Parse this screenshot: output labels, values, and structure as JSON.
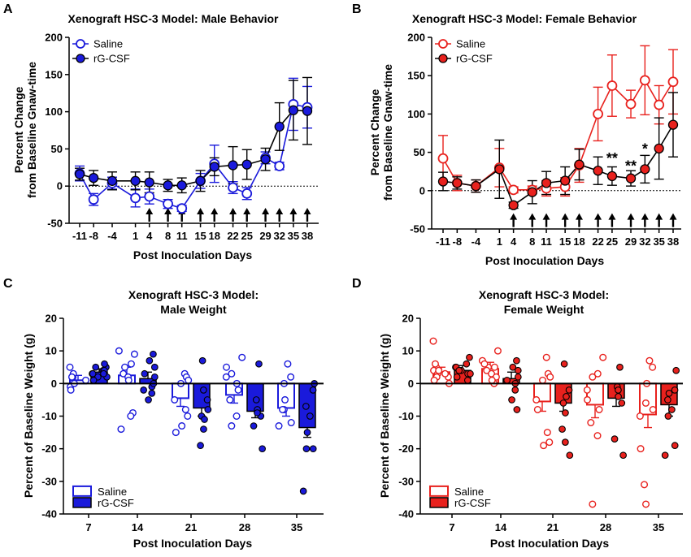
{
  "chart_data": [
    {
      "panel": "A",
      "type": "line",
      "title": "Xenograft HSC-3 Model: Male Behavior",
      "xlabel": "Post Inoculation Days",
      "ylabel": "Percent Change from Baseline Gnaw-time",
      "ylim": [
        -50,
        200
      ],
      "yticks": [
        -50,
        0,
        50,
        100,
        150,
        200
      ],
      "categories": [
        "-11",
        "-8",
        "-4",
        "1",
        "4",
        "8",
        "11",
        "15",
        "18",
        "22",
        "25",
        "29",
        "32",
        "35",
        "38"
      ],
      "x": [
        -11,
        -8,
        -4,
        1,
        4,
        8,
        11,
        15,
        18,
        22,
        25,
        29,
        32,
        35,
        38
      ],
      "arrow_days": [
        4,
        8,
        11,
        15,
        18,
        22,
        25,
        29,
        32,
        35,
        38
      ],
      "baseline": 0,
      "color": "#1a1adb",
      "legend": [
        "Saline",
        "rG-CSF"
      ],
      "legend_position": "top-left",
      "series": [
        {
          "name": "Saline",
          "style": "open",
          "values": [
            17,
            -18,
            4,
            -16,
            -14,
            -24,
            -30,
            7,
            30,
            -2,
            -10,
            38,
            27,
            110,
            106
          ],
          "errors": [
            10,
            8,
            8,
            12,
            10,
            6,
            4,
            10,
            25,
            8,
            8,
            8,
            5,
            35,
            28
          ]
        },
        {
          "name": "rG-CSF",
          "style": "filled",
          "values": [
            16,
            11,
            7,
            7,
            5,
            1,
            1,
            7,
            26,
            28,
            29,
            36,
            80,
            102,
            101
          ],
          "errors": [
            8,
            10,
            12,
            12,
            14,
            8,
            10,
            14,
            12,
            25,
            20,
            15,
            32,
            40,
            45
          ]
        }
      ]
    },
    {
      "panel": "B",
      "type": "line",
      "title": "Xenograft HSC-3 Model: Female Behavior",
      "xlabel": "Post Inoculation Days",
      "ylabel": "Percent Change from Baseline Gnaw-time",
      "ylim": [
        -50,
        200
      ],
      "yticks": [
        -50,
        0,
        50,
        100,
        150,
        200
      ],
      "categories": [
        "-11",
        "-8",
        "-4",
        "1",
        "4",
        "8",
        "11",
        "15",
        "18",
        "22",
        "25",
        "29",
        "32",
        "35",
        "38"
      ],
      "x": [
        -11,
        -8,
        -4,
        1,
        4,
        8,
        11,
        15,
        18,
        22,
        25,
        29,
        32,
        35,
        38
      ],
      "arrow_days": [
        4,
        8,
        11,
        15,
        18,
        22,
        25,
        29,
        32,
        35,
        38
      ],
      "baseline": 0,
      "color": "#e8211d",
      "legend": [
        "Saline",
        "rG-CSF"
      ],
      "legend_position": "top-left",
      "series": [
        {
          "name": "Saline",
          "style": "open",
          "values": [
            42,
            10,
            6,
            30,
            1,
            1,
            3,
            5,
            33,
            100,
            137,
            113,
            144,
            112,
            142
          ],
          "errors": [
            30,
            10,
            8,
            25,
            4,
            5,
            10,
            12,
            22,
            35,
            40,
            18,
            45,
            25,
            42
          ]
        },
        {
          "name": "rG-CSF",
          "style": "filled",
          "values": [
            12,
            10,
            6,
            28,
            -19,
            -2,
            10,
            13,
            34,
            26,
            19,
            16,
            28,
            55,
            86
          ],
          "errors": [
            12,
            8,
            8,
            38,
            4,
            15,
            15,
            18,
            20,
            18,
            12,
            10,
            18,
            40,
            42
          ]
        }
      ],
      "annotations": [
        {
          "text": "**",
          "x": 25,
          "y": 36
        },
        {
          "text": "**",
          "x": 29,
          "y": 26
        },
        {
          "text": "*",
          "x": 32,
          "y": 48
        }
      ]
    },
    {
      "panel": "C",
      "type": "bar",
      "title": [
        "Xenograft HSC-3 Model:",
        "Male Weight"
      ],
      "xlabel": "Post Inoculation Days",
      "ylabel": "Percent of Baseline Weight (g)",
      "ylim": [
        -40,
        20
      ],
      "yticks": [
        -40,
        -30,
        -20,
        -10,
        0,
        10,
        20
      ],
      "categories": [
        "7",
        "14",
        "21",
        "28",
        "35"
      ],
      "color": "#1a1adb",
      "legend": [
        "Saline",
        "rG-CSF"
      ],
      "legend_position": "bottom-left",
      "series": [
        {
          "name": "Saline",
          "style": "open",
          "values": [
            1,
            2.5,
            -4.5,
            -3.5,
            -7.5
          ],
          "errors": [
            1.5,
            2.5,
            2.5,
            2.5,
            2.5
          ],
          "points": [
            [
              5,
              2,
              -1,
              0,
              3,
              -2,
              1,
              2
            ],
            [
              9,
              10,
              5,
              3,
              2,
              -9,
              -10,
              -14,
              1,
              6
            ],
            [
              3,
              2,
              0,
              -5,
              -8,
              -10,
              -13,
              -15,
              1
            ],
            [
              8,
              3,
              2,
              -2,
              -5,
              -10,
              -13,
              5,
              0
            ],
            [
              6,
              2,
              -5,
              -8,
              -12,
              -13,
              -8,
              0
            ]
          ]
        },
        {
          "name": "rG-CSF",
          "style": "filled",
          "values": [
            3.5,
            1.5,
            -7.5,
            -8.5,
            -13.5
          ],
          "errors": [
            1.0,
            2.0,
            2.5,
            2.0,
            3.0
          ],
          "points": [
            [
              5,
              4,
              3,
              2,
              6,
              1,
              4,
              3,
              2,
              5,
              3
            ],
            [
              9,
              7,
              2,
              -1,
              -3,
              -5,
              0,
              5,
              -2,
              3
            ],
            [
              7,
              -5,
              -10,
              -14,
              -19,
              -2,
              -8,
              -11
            ],
            [
              6,
              -5,
              -8,
              -10,
              -13,
              -20,
              -9
            ],
            [
              0,
              -2,
              -7,
              -10,
              -20,
              -20,
              -33,
              -15
            ]
          ]
        }
      ]
    },
    {
      "panel": "D",
      "type": "bar",
      "title": [
        "Xenograft HSC-3 Model:",
        "Female Weight"
      ],
      "xlabel": "Post Inoculation Days",
      "ylabel": "Percent of Baseline Weight (g)",
      "ylim": [
        -40,
        20
      ],
      "yticks": [
        -40,
        -30,
        -20,
        -10,
        0,
        10,
        20
      ],
      "categories": [
        "7",
        "14",
        "21",
        "28",
        "35"
      ],
      "color": "#e8211d",
      "legend": [
        "Saline",
        "rG-CSF"
      ],
      "legend_position": "bottom-left",
      "series": [
        {
          "name": "Saline",
          "style": "open",
          "values": [
            3.5,
            4.5,
            -5.5,
            -6.5,
            -9.5
          ],
          "errors": [
            1.5,
            2.0,
            3.0,
            4.0,
            4.0
          ],
          "points": [
            [
              13,
              5,
              4,
              3,
              2,
              1,
              0,
              6,
              4,
              2,
              3
            ],
            [
              10,
              7,
              5,
              4,
              3,
              2,
              0,
              6,
              1,
              5
            ],
            [
              8,
              3,
              1,
              -5,
              -15,
              -18,
              -19,
              -8,
              2
            ],
            [
              8,
              2,
              -2,
              -8,
              -12,
              -16,
              -37,
              -5,
              3
            ],
            [
              7,
              5,
              0,
              -6,
              -8,
              -20,
              -31,
              -37,
              -10
            ]
          ]
        },
        {
          "name": "rG-CSF",
          "style": "filled",
          "values": [
            4.0,
            1.5,
            -6.0,
            -4.5,
            -6.5
          ],
          "errors": [
            1.5,
            2.0,
            2.5,
            2.5,
            3.5
          ],
          "points": [
            [
              8,
              6,
              5,
              4,
              3,
              2,
              1,
              5,
              3,
              4
            ],
            [
              7,
              5,
              2,
              0,
              -2,
              -5,
              -8,
              4,
              1
            ],
            [
              6,
              -2,
              -6,
              -9,
              -14,
              -18,
              -22,
              -4
            ],
            [
              5,
              -1,
              -4,
              -6,
              -17,
              -22,
              -2
            ],
            [
              4,
              -2,
              -5,
              -8,
              -10,
              -19,
              -22,
              -3
            ]
          ]
        }
      ]
    }
  ]
}
